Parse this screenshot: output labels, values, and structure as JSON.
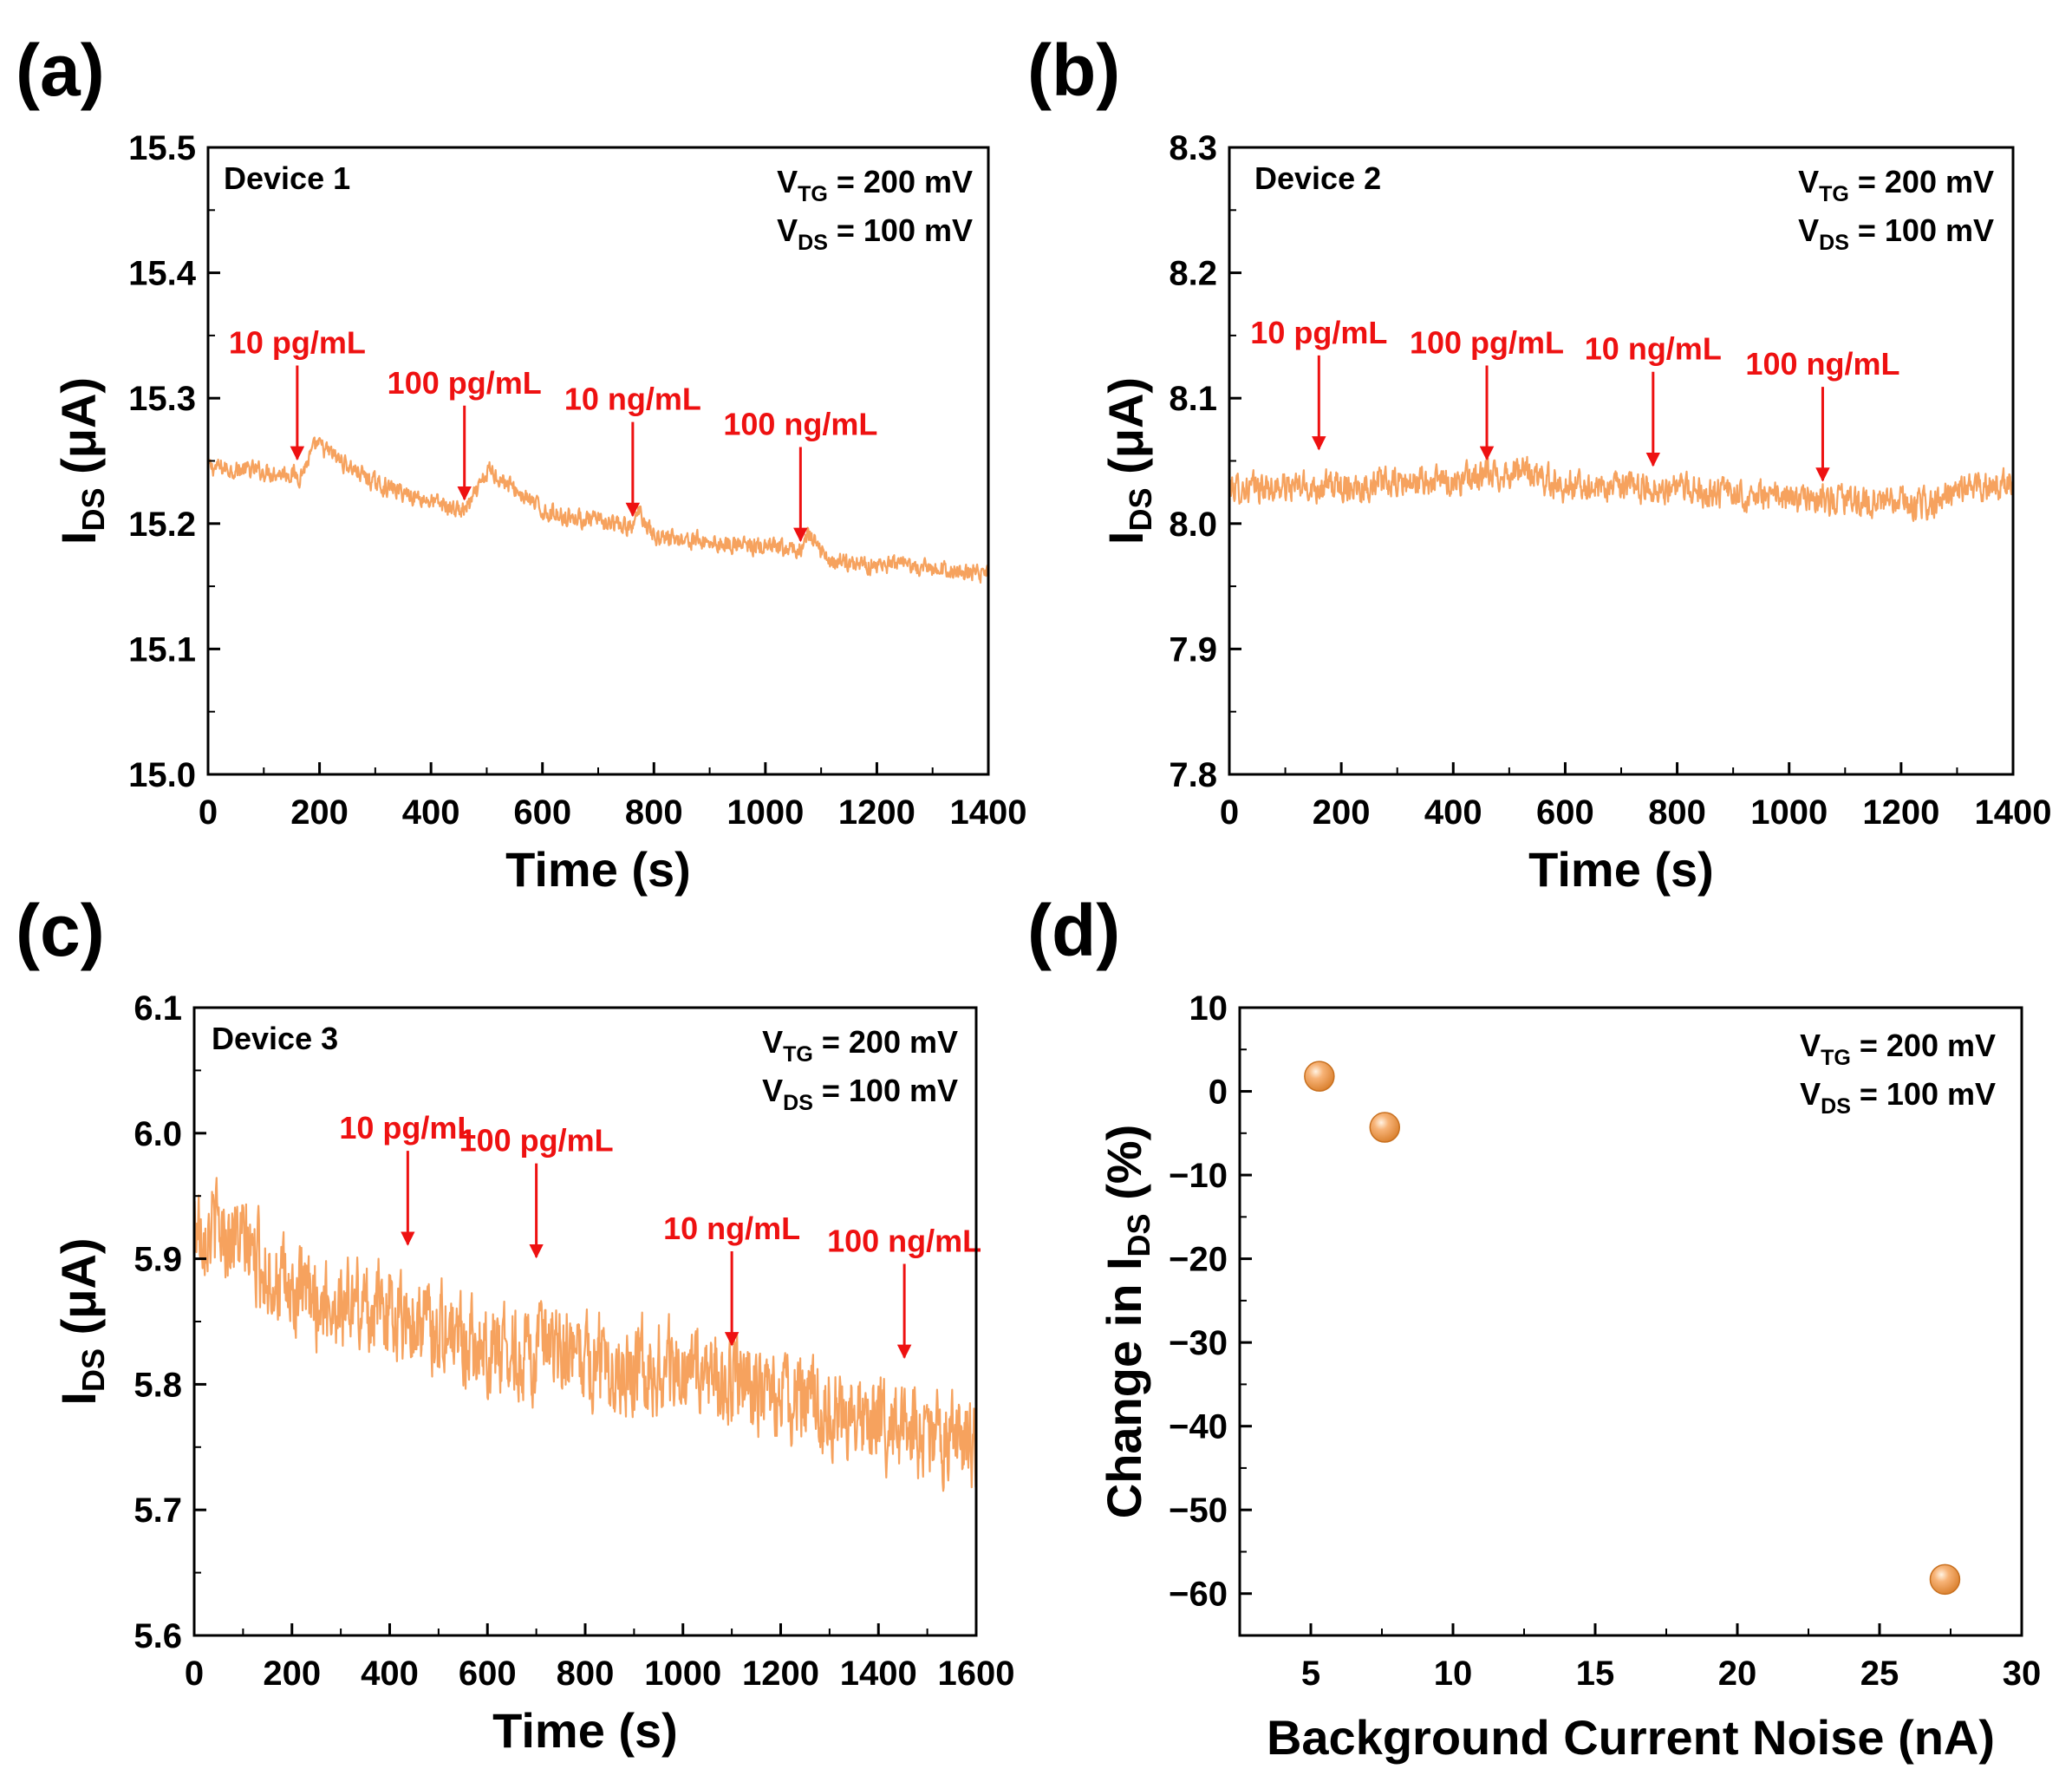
{
  "colors": {
    "series": "#f6a25e",
    "annotation": "#ee1111",
    "marker_fill": "#f5a15c",
    "marker_edge": "#c8701f"
  },
  "panels": [
    {
      "label": "(a)",
      "device": "Device 1",
      "vtg": {
        "main": "V",
        "sub": "TG",
        "rest": " = 200 mV"
      },
      "vds": {
        "main": "V",
        "sub": "DS",
        "rest": " = 100 mV"
      },
      "xlabel": "Time (s)",
      "ylabel": {
        "main": "I",
        "sub": "DS",
        "rest": " (μA)"
      }
    },
    {
      "label": "(b)",
      "device": "Device 2",
      "vtg": {
        "main": "V",
        "sub": "TG",
        "rest": " = 200 mV"
      },
      "vds": {
        "main": "V",
        "sub": "DS",
        "rest": " = 100 mV"
      },
      "xlabel": "Time (s)",
      "ylabel": {
        "main": "I",
        "sub": "DS",
        "rest": " (μA)"
      }
    },
    {
      "label": "(c)",
      "device": "Device 3",
      "vtg": {
        "main": "V",
        "sub": "TG",
        "rest": " = 200 mV"
      },
      "vds": {
        "main": "V",
        "sub": "DS",
        "rest": " = 100 mV"
      },
      "xlabel": "Time (s)",
      "ylabel": {
        "main": "I",
        "sub": "DS",
        "rest": " (μA)"
      }
    },
    {
      "label": "(d)",
      "vtg": {
        "main": "V",
        "sub": "TG",
        "rest": " = 200 mV"
      },
      "vds": {
        "main": "V",
        "sub": "DS",
        "rest": " = 100 mV"
      },
      "xlabel": "Background Current Noise (nA)",
      "ylabel": {
        "main": "Change in I",
        "sub": "DS",
        "rest": " (%)"
      }
    }
  ],
  "chart_data": [
    {
      "type": "line",
      "panel": "(a)",
      "xlim": [
        0,
        1400
      ],
      "ylim": [
        15.0,
        15.5
      ],
      "xticks": [
        0,
        200,
        400,
        600,
        800,
        1000,
        1200,
        1400
      ],
      "yticks": [
        "15.0",
        "15.1",
        "15.2",
        "15.3",
        "15.4",
        "15.5"
      ],
      "grid": false,
      "series_trend": [
        [
          0,
          15.245
        ],
        [
          150,
          15.24
        ],
        [
          165,
          15.238
        ],
        [
          195,
          15.263
        ],
        [
          300,
          15.232
        ],
        [
          455,
          15.21
        ],
        [
          470,
          15.215
        ],
        [
          505,
          15.243
        ],
        [
          600,
          15.21
        ],
        [
          760,
          15.196
        ],
        [
          775,
          15.21
        ],
        [
          800,
          15.19
        ],
        [
          1060,
          15.178
        ],
        [
          1075,
          15.19
        ],
        [
          1120,
          15.17
        ],
        [
          1400,
          15.16
        ]
      ],
      "noise_amplitude": 0.006,
      "annotations": [
        {
          "text": "10 pg/mL",
          "x": 160,
          "y": 15.25
        },
        {
          "text": "100 pg/mL",
          "x": 460,
          "y": 15.218
        },
        {
          "text": "10 ng/mL",
          "x": 762,
          "y": 15.205
        },
        {
          "text": "100 ng/mL",
          "x": 1063,
          "y": 15.185
        }
      ]
    },
    {
      "type": "line",
      "panel": "(b)",
      "xlim": [
        0,
        1400
      ],
      "ylim": [
        7.8,
        8.3
      ],
      "xticks": [
        0,
        200,
        400,
        600,
        800,
        1000,
        1200,
        1400
      ],
      "yticks": [
        "7.8",
        "7.9",
        "8.0",
        "8.1",
        "8.2",
        "8.3"
      ],
      "grid": false,
      "series_trend": [
        [
          0,
          8.028
        ],
        [
          200,
          8.03
        ],
        [
          400,
          8.034
        ],
        [
          520,
          8.042
        ],
        [
          600,
          8.03
        ],
        [
          800,
          8.028
        ],
        [
          1000,
          8.02
        ],
        [
          1250,
          8.015
        ],
        [
          1320,
          8.03
        ],
        [
          1400,
          8.032
        ]
      ],
      "noise_amplitude": 0.01,
      "annotations": [
        {
          "text": "10 pg/mL",
          "x": 160,
          "y": 8.058
        },
        {
          "text": "100 pg/mL",
          "x": 460,
          "y": 8.05
        },
        {
          "text": "10 ng/mL",
          "x": 757,
          "y": 8.045
        },
        {
          "text": "100 ng/mL",
          "x": 1060,
          "y": 8.033
        }
      ]
    },
    {
      "type": "line",
      "panel": "(c)",
      "xlim": [
        0,
        1600
      ],
      "ylim": [
        5.6,
        6.1
      ],
      "xticks": [
        0,
        200,
        400,
        600,
        800,
        1000,
        1200,
        1400,
        1600
      ],
      "yticks": [
        "5.6",
        "5.7",
        "5.8",
        "5.9",
        "6.0",
        "6.1"
      ],
      "grid": false,
      "series_trend": [
        [
          0,
          5.93
        ],
        [
          80,
          5.92
        ],
        [
          200,
          5.87
        ],
        [
          400,
          5.86
        ],
        [
          600,
          5.83
        ],
        [
          800,
          5.82
        ],
        [
          1000,
          5.81
        ],
        [
          1200,
          5.79
        ],
        [
          1400,
          5.77
        ],
        [
          1600,
          5.75
        ]
      ],
      "noise_amplitude": 0.03,
      "annotations": [
        {
          "text": "10 pg/mL",
          "x": 437,
          "y": 5.91
        },
        {
          "text": "100 pg/mL",
          "x": 700,
          "y": 5.9
        },
        {
          "text": "10 ng/mL",
          "x": 1100,
          "y": 5.83
        },
        {
          "text": "100 ng/mL",
          "x": 1453,
          "y": 5.82
        }
      ]
    },
    {
      "type": "scatter",
      "panel": "(d)",
      "xlim": [
        2.5,
        30
      ],
      "ylim": [
        -65,
        10
      ],
      "xticks": [
        "5",
        "10",
        "15",
        "20",
        "25",
        "30"
      ],
      "yticks": [
        "−60",
        "−50",
        "−40",
        "−30",
        "−20",
        "−10",
        "0",
        "10"
      ],
      "grid": false,
      "x": [
        5.3,
        7.6,
        27.3
      ],
      "y": [
        1.8,
        -4.3,
        -58.3
      ]
    }
  ]
}
